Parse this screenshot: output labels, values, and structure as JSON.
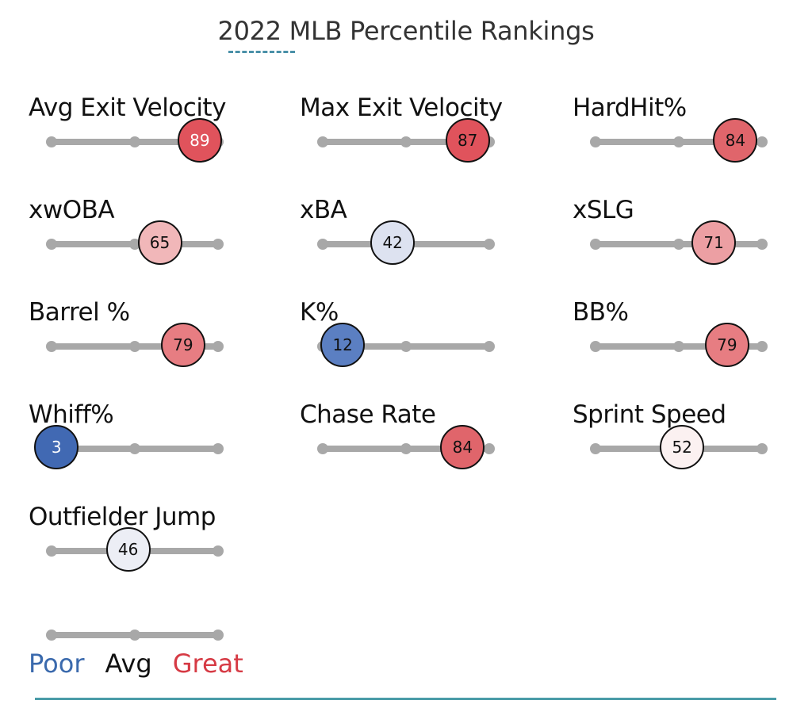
{
  "title": "2022 MLB Percentile Rankings",
  "metrics": [
    {
      "label": "Avg Exit Velocity",
      "value": 89,
      "color": "#e0535c",
      "text_color": "#ffffff"
    },
    {
      "label": "Max Exit Velocity",
      "value": 87,
      "color": "#e0535c",
      "text_color": "#111111"
    },
    {
      "label": "HardHit%",
      "value": 84,
      "color": "#e0656b",
      "text_color": "#111111"
    },
    {
      "label": "xwOBA",
      "value": 65,
      "color": "#f1b7b9",
      "text_color": "#111111"
    },
    {
      "label": "xBA",
      "value": 42,
      "color": "#dde2f0",
      "text_color": "#111111"
    },
    {
      "label": "xSLG",
      "value": 71,
      "color": "#ec9fa3",
      "text_color": "#111111"
    },
    {
      "label": "Barrel %",
      "value": 79,
      "color": "#e77d82",
      "text_color": "#111111"
    },
    {
      "label": "K%",
      "value": 12,
      "color": "#5b7fc2",
      "text_color": "#111111"
    },
    {
      "label": "BB%",
      "value": 79,
      "color": "#e77d82",
      "text_color": "#111111"
    },
    {
      "label": "Whiff%",
      "value": 3,
      "color": "#4169b3",
      "text_color": "#ffffff"
    },
    {
      "label": "Chase Rate",
      "value": 84,
      "color": "#e0656b",
      "text_color": "#111111"
    },
    {
      "label": "Sprint Speed",
      "value": 52,
      "color": "#fbf1f1",
      "text_color": "#111111"
    },
    {
      "label": "Outfielder Jump",
      "value": 46,
      "color": "#eceef5",
      "text_color": "#111111"
    }
  ],
  "legend": {
    "poor": "Poor",
    "avg": "Avg",
    "great": "Great",
    "poor_color": "#3b6aad",
    "avg_color": "#111111",
    "great_color": "#d63a44"
  }
}
